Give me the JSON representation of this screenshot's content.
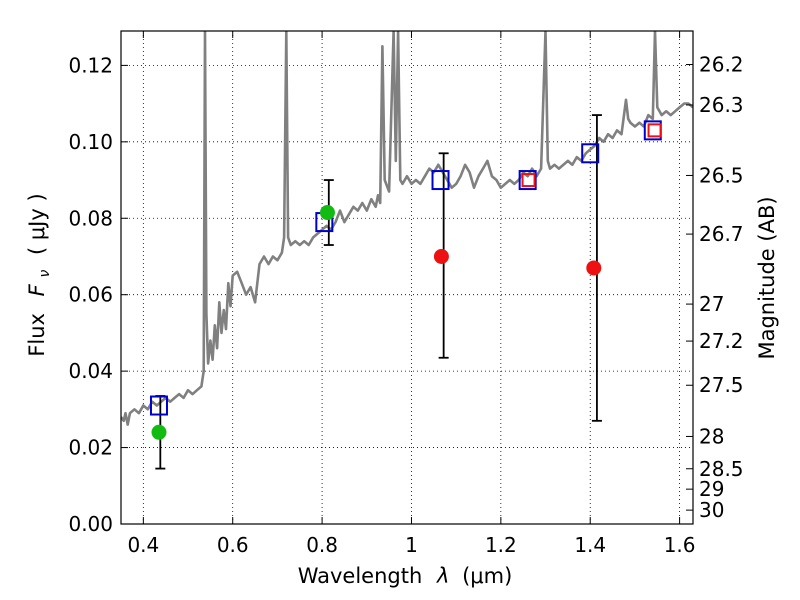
{
  "chart_data": {
    "type": "scatter",
    "xlabel_text": "Wavelength",
    "xlabel_symbol": "λ",
    "xlabel_unit": "(μm)",
    "ylabel_text": "Flux",
    "ylabel_symbol": "F",
    "ylabel_subscript": "ν",
    "ylabel_unit": "( μJy )",
    "ylabel_right": "Magnitude (AB)",
    "xlim": [
      0.35,
      1.63
    ],
    "ylim": [
      0.0,
      0.129
    ],
    "grid": true,
    "x_ticks": [
      {
        "value": 0.4,
        "label": "0.4"
      },
      {
        "value": 0.6,
        "label": "0.6"
      },
      {
        "value": 0.8,
        "label": "0.8"
      },
      {
        "value": 1.0,
        "label": "1"
      },
      {
        "value": 1.2,
        "label": "1.2"
      },
      {
        "value": 1.4,
        "label": "1.4"
      },
      {
        "value": 1.6,
        "label": "1.6"
      }
    ],
    "y_ticks": [
      {
        "value": 0.0,
        "label": "0.00"
      },
      {
        "value": 0.02,
        "label": "0.02"
      },
      {
        "value": 0.04,
        "label": "0.04"
      },
      {
        "value": 0.06,
        "label": "0.06"
      },
      {
        "value": 0.08,
        "label": "0.08"
      },
      {
        "value": 0.1,
        "label": "0.10"
      },
      {
        "value": 0.12,
        "label": "0.12"
      }
    ],
    "mag_ticks": [
      {
        "value": 26.2,
        "label": "26.2"
      },
      {
        "value": 26.3,
        "label": "26.3"
      },
      {
        "value": 26.5,
        "label": "26.5"
      },
      {
        "value": 26.7,
        "label": "26.7"
      },
      {
        "value": 27.0,
        "label": "27"
      },
      {
        "value": 27.2,
        "label": "27.2"
      },
      {
        "value": 27.5,
        "label": "27.5"
      },
      {
        "value": 28.0,
        "label": "28"
      },
      {
        "value": 28.5,
        "label": "28.5"
      },
      {
        "value": 29.0,
        "label": "29"
      },
      {
        "value": 30.0,
        "label": "30"
      }
    ],
    "colors": {
      "spectrum": "#808080",
      "model": "#0000cc",
      "red_detection": "#ee1111",
      "green_detection": "#11bb11",
      "red_box": "#ee1111",
      "error_bar": "#000000"
    },
    "spectrum": [
      [
        0.35,
        0.028
      ],
      [
        0.356,
        0.027
      ],
      [
        0.36,
        0.029
      ],
      [
        0.365,
        0.026
      ],
      [
        0.37,
        0.029
      ],
      [
        0.38,
        0.03
      ],
      [
        0.39,
        0.029
      ],
      [
        0.4,
        0.031
      ],
      [
        0.41,
        0.03
      ],
      [
        0.42,
        0.032
      ],
      [
        0.43,
        0.031
      ],
      [
        0.44,
        0.032
      ],
      [
        0.45,
        0.033
      ],
      [
        0.46,
        0.032
      ],
      [
        0.47,
        0.033
      ],
      [
        0.48,
        0.034
      ],
      [
        0.49,
        0.033
      ],
      [
        0.5,
        0.035
      ],
      [
        0.51,
        0.034
      ],
      [
        0.52,
        0.035
      ],
      [
        0.53,
        0.036
      ],
      [
        0.535,
        0.04
      ],
      [
        0.538,
        0.129
      ],
      [
        0.541,
        0.055
      ],
      [
        0.545,
        0.042
      ],
      [
        0.55,
        0.048
      ],
      [
        0.555,
        0.043
      ],
      [
        0.56,
        0.052
      ],
      [
        0.565,
        0.046
      ],
      [
        0.57,
        0.058
      ],
      [
        0.575,
        0.05
      ],
      [
        0.58,
        0.056
      ],
      [
        0.585,
        0.051
      ],
      [
        0.59,
        0.063
      ],
      [
        0.595,
        0.057
      ],
      [
        0.6,
        0.065
      ],
      [
        0.61,
        0.066
      ],
      [
        0.62,
        0.063
      ],
      [
        0.63,
        0.06
      ],
      [
        0.64,
        0.062
      ],
      [
        0.65,
        0.058
      ],
      [
        0.66,
        0.068
      ],
      [
        0.67,
        0.07
      ],
      [
        0.68,
        0.068
      ],
      [
        0.69,
        0.07
      ],
      [
        0.7,
        0.069
      ],
      [
        0.71,
        0.071
      ],
      [
        0.715,
        0.075
      ],
      [
        0.72,
        0.129
      ],
      [
        0.724,
        0.075
      ],
      [
        0.73,
        0.073
      ],
      [
        0.74,
        0.074
      ],
      [
        0.75,
        0.073
      ],
      [
        0.76,
        0.074
      ],
      [
        0.77,
        0.073
      ],
      [
        0.78,
        0.075
      ],
      [
        0.79,
        0.076
      ],
      [
        0.8,
        0.077
      ],
      [
        0.81,
        0.078
      ],
      [
        0.82,
        0.077
      ],
      [
        0.83,
        0.079
      ],
      [
        0.84,
        0.082
      ],
      [
        0.85,
        0.079
      ],
      [
        0.86,
        0.081
      ],
      [
        0.87,
        0.083
      ],
      [
        0.88,
        0.082
      ],
      [
        0.89,
        0.084
      ],
      [
        0.9,
        0.082
      ],
      [
        0.91,
        0.085
      ],
      [
        0.92,
        0.083
      ],
      [
        0.925,
        0.086
      ],
      [
        0.93,
        0.084
      ],
      [
        0.935,
        0.125
      ],
      [
        0.94,
        0.09
      ],
      [
        0.95,
        0.087
      ],
      [
        0.96,
        0.129
      ],
      [
        0.965,
        0.095
      ],
      [
        0.97,
        0.129
      ],
      [
        0.975,
        0.09
      ],
      [
        0.98,
        0.089
      ],
      [
        0.99,
        0.091
      ],
      [
        1.0,
        0.089
      ],
      [
        1.01,
        0.09
      ],
      [
        1.02,
        0.089
      ],
      [
        1.03,
        0.091
      ],
      [
        1.04,
        0.093
      ],
      [
        1.05,
        0.092
      ],
      [
        1.06,
        0.094
      ],
      [
        1.07,
        0.092
      ],
      [
        1.08,
        0.09
      ],
      [
        1.09,
        0.088
      ],
      [
        1.1,
        0.089
      ],
      [
        1.11,
        0.091
      ],
      [
        1.12,
        0.094
      ],
      [
        1.13,
        0.092
      ],
      [
        1.14,
        0.088
      ],
      [
        1.15,
        0.091
      ],
      [
        1.16,
        0.093
      ],
      [
        1.17,
        0.095
      ],
      [
        1.18,
        0.091
      ],
      [
        1.19,
        0.09
      ],
      [
        1.2,
        0.088
      ],
      [
        1.21,
        0.089
      ],
      [
        1.22,
        0.09
      ],
      [
        1.23,
        0.089
      ],
      [
        1.24,
        0.09
      ],
      [
        1.25,
        0.092
      ],
      [
        1.26,
        0.091
      ],
      [
        1.27,
        0.093
      ],
      [
        1.28,
        0.091
      ],
      [
        1.29,
        0.093
      ],
      [
        1.3,
        0.129
      ],
      [
        1.305,
        0.095
      ],
      [
        1.31,
        0.093
      ],
      [
        1.32,
        0.094
      ],
      [
        1.33,
        0.093
      ],
      [
        1.34,
        0.094
      ],
      [
        1.35,
        0.095
      ],
      [
        1.36,
        0.094
      ],
      [
        1.37,
        0.096
      ],
      [
        1.38,
        0.095
      ],
      [
        1.39,
        0.097
      ],
      [
        1.4,
        0.098
      ],
      [
        1.41,
        0.099
      ],
      [
        1.42,
        0.101
      ],
      [
        1.43,
        0.1
      ],
      [
        1.44,
        0.102
      ],
      [
        1.45,
        0.101
      ],
      [
        1.46,
        0.103
      ],
      [
        1.47,
        0.102
      ],
      [
        1.48,
        0.111
      ],
      [
        1.485,
        0.106
      ],
      [
        1.49,
        0.105
      ],
      [
        1.5,
        0.104
      ],
      [
        1.51,
        0.105
      ],
      [
        1.52,
        0.104
      ],
      [
        1.53,
        0.107
      ],
      [
        1.54,
        0.106
      ],
      [
        1.545,
        0.129
      ],
      [
        1.55,
        0.109
      ],
      [
        1.56,
        0.107
      ],
      [
        1.57,
        0.108
      ],
      [
        1.58,
        0.107
      ],
      [
        1.59,
        0.108
      ],
      [
        1.6,
        0.109
      ],
      [
        1.61,
        0.11
      ],
      [
        1.62,
        0.11
      ],
      [
        1.63,
        0.109
      ]
    ],
    "model_points": [
      {
        "x": 0.435,
        "y": 0.031
      },
      {
        "x": 0.805,
        "y": 0.079
      },
      {
        "x": 1.065,
        "y": 0.09
      },
      {
        "x": 1.26,
        "y": 0.09
      },
      {
        "x": 1.4,
        "y": 0.097
      },
      {
        "x": 1.54,
        "y": 0.103
      }
    ],
    "red_boxes": [
      {
        "x": 1.262,
        "y": 0.09
      },
      {
        "x": 1.544,
        "y": 0.103
      }
    ],
    "green_detections": [
      {
        "x": 0.435,
        "y": 0.024
      },
      {
        "x": 0.812,
        "y": 0.0815
      }
    ],
    "red_detections": [
      {
        "x": 1.067,
        "y": 0.07
      },
      {
        "x": 1.408,
        "y": 0.067
      }
    ],
    "error_bars": [
      {
        "x": 0.438,
        "low": 0.0145,
        "high": 0.0335
      },
      {
        "x": 0.815,
        "low": 0.073,
        "high": 0.09
      },
      {
        "x": 1.072,
        "low": 0.0435,
        "high": 0.097
      },
      {
        "x": 1.415,
        "low": 0.027,
        "high": 0.107
      }
    ]
  }
}
